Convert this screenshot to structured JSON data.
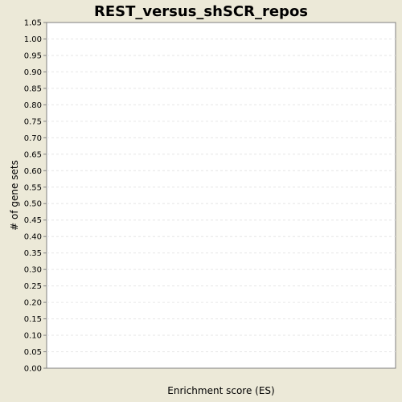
{
  "chart_data": {
    "type": "bar",
    "title": "REST_versus_shSCR_repos",
    "xlabel": "Enrichment score (ES)",
    "ylabel": "# of gene sets",
    "ylim": [
      0,
      1.05
    ],
    "y_ticks": [
      "0.00",
      "0.05",
      "0.10",
      "0.15",
      "0.20",
      "0.25",
      "0.30",
      "0.35",
      "0.40",
      "0.45",
      "0.50",
      "0.55",
      "0.60",
      "0.65",
      "0.70",
      "0.75",
      "0.80",
      "0.85",
      "0.90",
      "0.95",
      "1.00",
      "1.05"
    ],
    "categories": [],
    "values": [],
    "grid": true,
    "legend": "none",
    "colors": {
      "background": "#ece9d8",
      "plot_background": "#ffffff",
      "grid": "#e6e6e6",
      "axis": "#7f7f7f",
      "text": "#000000"
    }
  }
}
